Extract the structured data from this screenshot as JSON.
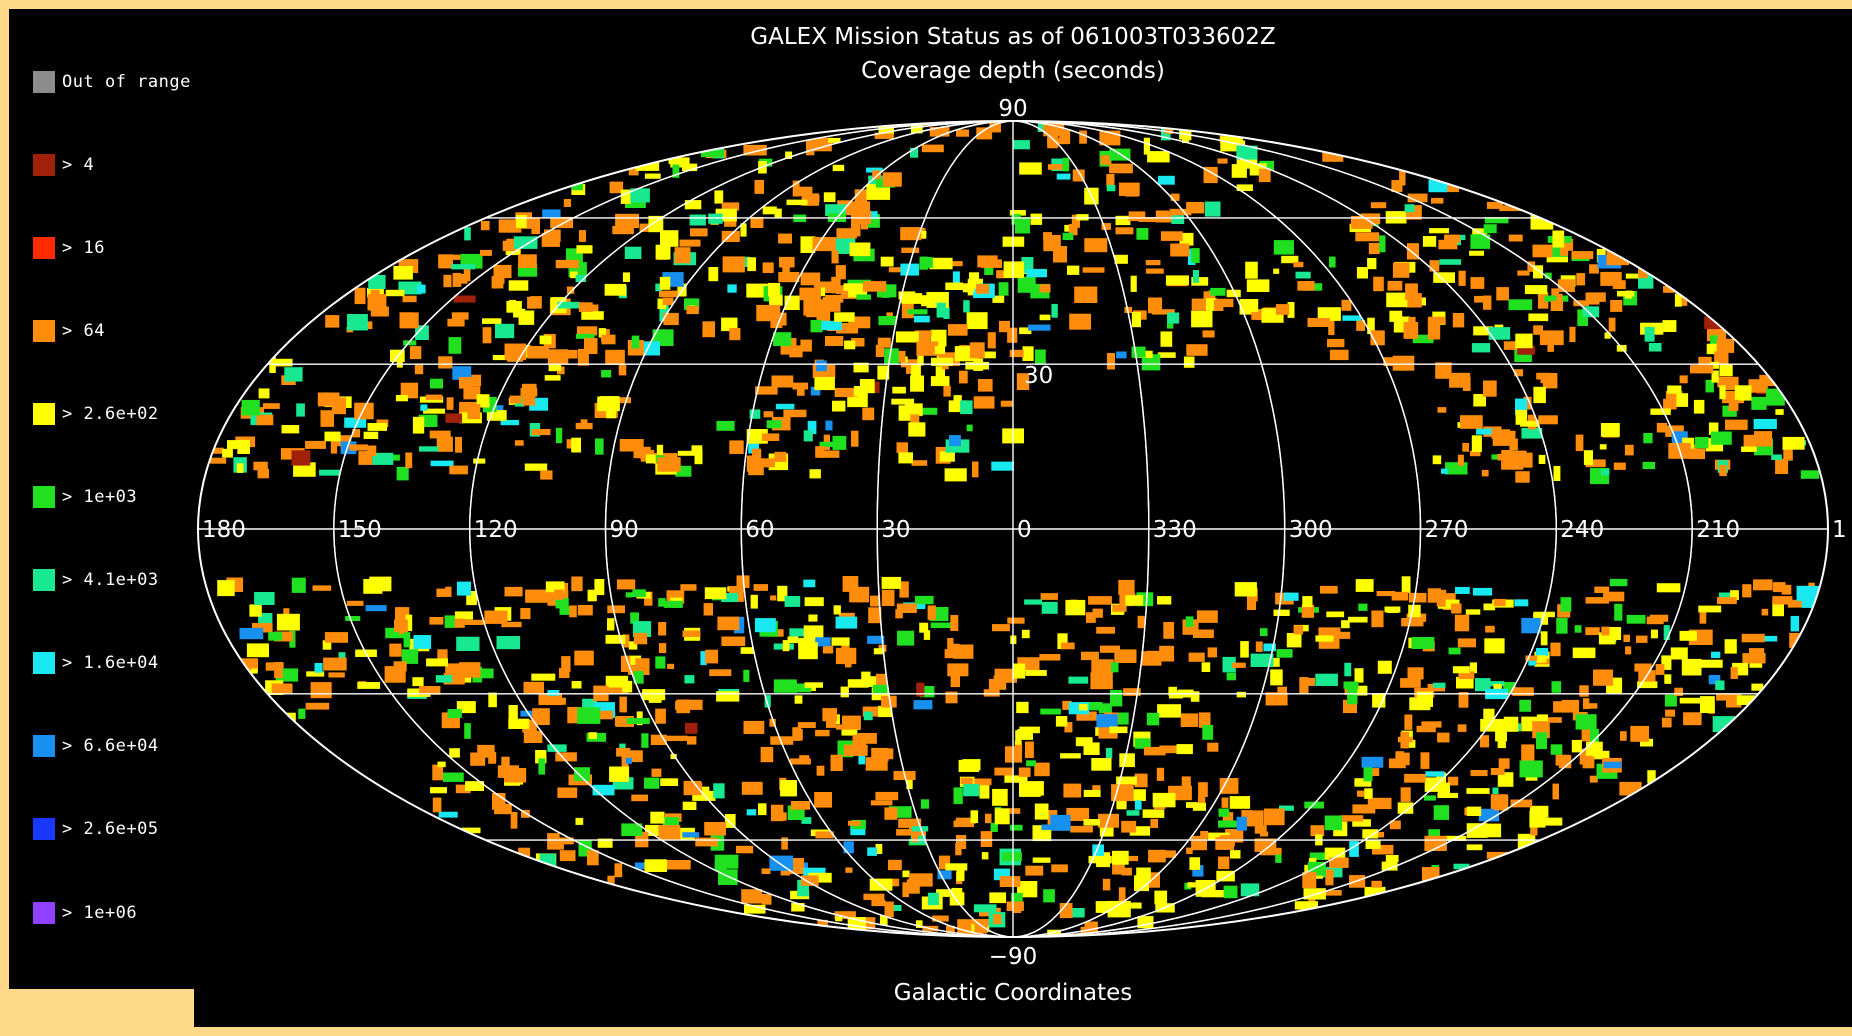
{
  "title": "GALEX Mission Status as of 061003T033602Z",
  "subtitle": "Coverage depth (seconds)",
  "footer": "Galactic Coordinates",
  "latitude_labels": {
    "top": "90",
    "upper_mid": "30",
    "bottom": "−90"
  },
  "longitude_labels": [
    "180",
    "150",
    "120",
    "90",
    "60",
    "30",
    "0",
    "330",
    "300",
    "270",
    "240",
    "210",
    "1"
  ],
  "legend": [
    {
      "label": "Out of range",
      "color": "#8c8c8c"
    },
    {
      "label": "> 4",
      "color": "#a0200a"
    },
    {
      "label": "> 16",
      "color": "#ff2a00"
    },
    {
      "label": "> 64",
      "color": "#ff8c0a"
    },
    {
      "label": "> 2.6e+02",
      "color": "#ffff00"
    },
    {
      "label": "> 1e+03",
      "color": "#20e020"
    },
    {
      "label": "> 4.1e+03",
      "color": "#18e890"
    },
    {
      "label": "> 1.6e+04",
      "color": "#18e8f0"
    },
    {
      "label": "> 6.6e+04",
      "color": "#1890f0"
    },
    {
      "label": "> 2.6e+05",
      "color": "#1838ff"
    },
    {
      "label": "> 1e+06",
      "color": "#9040ff"
    }
  ],
  "colors": {
    "page_border": "#ffd98a",
    "background": "#000000",
    "grid": "#ffffff"
  }
}
